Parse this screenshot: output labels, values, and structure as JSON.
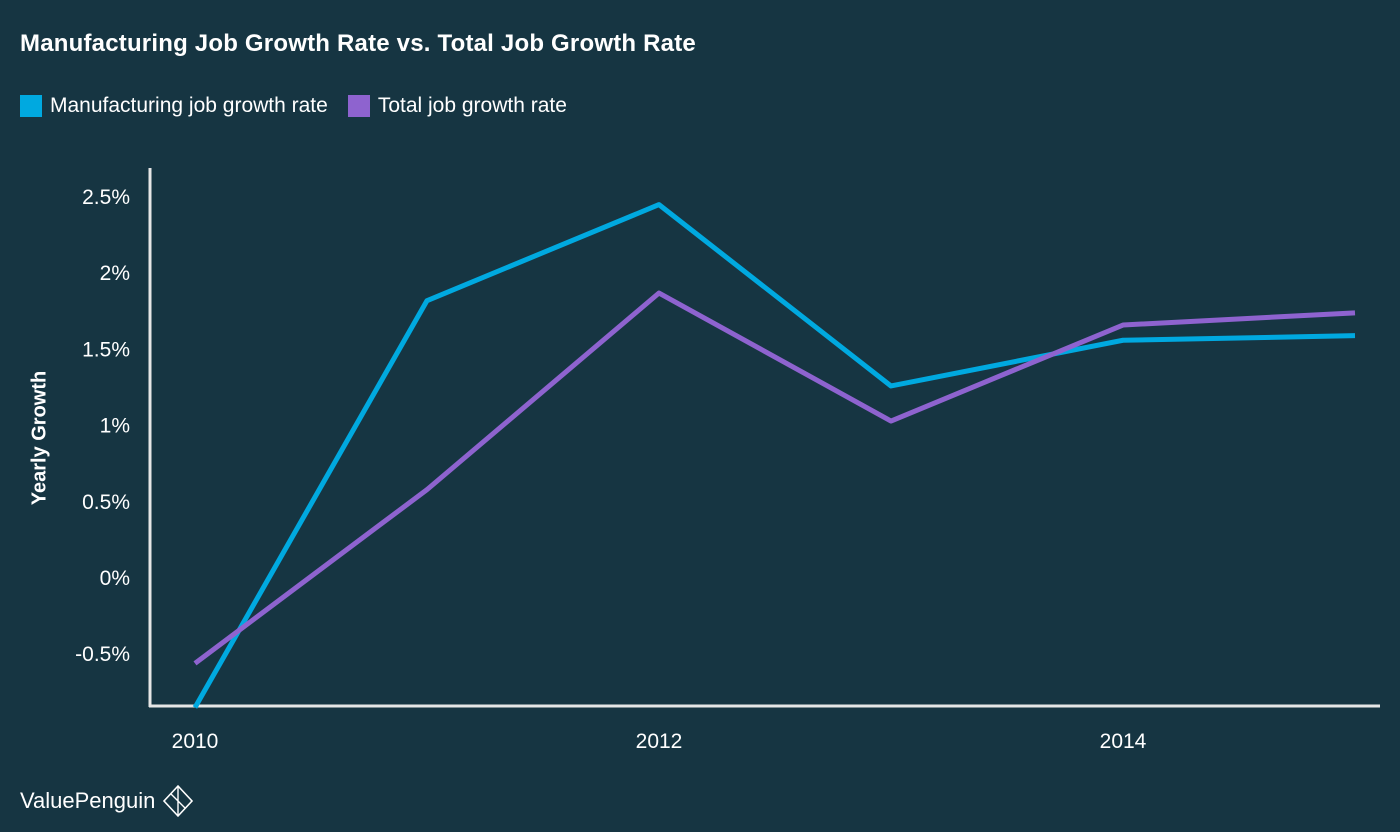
{
  "colors": {
    "background": "#163542",
    "axis": "#e6e6e6",
    "text": "#ffffff"
  },
  "brand": {
    "name": "ValuePenguin",
    "icon": "valuepenguin-logo-icon"
  },
  "chart_data": {
    "type": "line",
    "title": "Manufacturing Job Growth Rate vs. Total Job Growth Rate",
    "xlabel": "",
    "ylabel": "Yearly Growth",
    "x": [
      2010,
      2011,
      2012,
      2013,
      2014,
      2015
    ],
    "x_ticks": [
      2010,
      2012,
      2014
    ],
    "y_ticks": [
      {
        "value": 2.5,
        "label": "2.5%"
      },
      {
        "value": 2.0,
        "label": "2%"
      },
      {
        "value": 1.5,
        "label": "1.5%"
      },
      {
        "value": 1.0,
        "label": "1%"
      },
      {
        "value": 0.5,
        "label": "0.5%"
      },
      {
        "value": 0.0,
        "label": "0%"
      },
      {
        "value": -0.5,
        "label": "-0.5%"
      }
    ],
    "xlim": [
      2009.9,
      2015.1
    ],
    "ylim": [
      -0.85,
      2.7
    ],
    "grid": false,
    "legend_position": "top-left",
    "series": [
      {
        "name": "Manufacturing job growth rate",
        "color": "#00a9e0",
        "values": [
          -0.85,
          1.82,
          2.45,
          1.26,
          1.56,
          1.59
        ]
      },
      {
        "name": "Total job growth rate",
        "color": "#8e63cf",
        "values": [
          -0.56,
          0.58,
          1.87,
          1.03,
          1.66,
          1.74
        ]
      }
    ]
  }
}
